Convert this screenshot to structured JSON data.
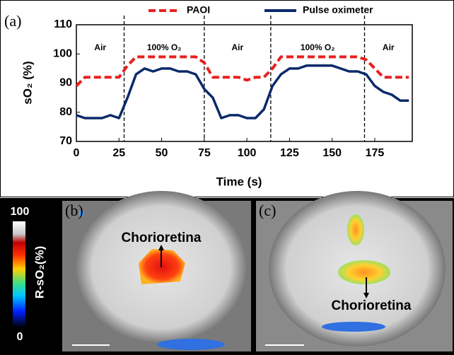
{
  "chart_data": {
    "type": "line",
    "panel_label": "(a)",
    "x_label": "Time (s)",
    "y_label": "sO₂ (%)",
    "xlim": [
      0,
      197
    ],
    "ylim": [
      70,
      110
    ],
    "xticks": [
      0,
      25,
      50,
      75,
      100,
      125,
      150,
      175
    ],
    "yticks": [
      70,
      80,
      90,
      100,
      110
    ],
    "phase_boundaries": [
      28,
      75,
      114,
      169
    ],
    "phase_labels": [
      "Air",
      "100% O₂",
      "Air",
      "100% O₂",
      "Air"
    ],
    "x": [
      0,
      5,
      10,
      15,
      20,
      25,
      30,
      35,
      40,
      45,
      50,
      55,
      60,
      65,
      70,
      75,
      80,
      85,
      90,
      95,
      100,
      105,
      110,
      115,
      120,
      125,
      130,
      135,
      140,
      145,
      150,
      155,
      160,
      165,
      170,
      175,
      180,
      185,
      190,
      195
    ],
    "series": [
      {
        "name": "PAOI",
        "color": "#e8201e",
        "dashed": true,
        "values": [
          89,
          92,
          92,
          92,
          92,
          92,
          96,
          99,
          99,
          99,
          99,
          99,
          99,
          99,
          99,
          97,
          92,
          92,
          92,
          92,
          91,
          92,
          92,
          95,
          99,
          99,
          99,
          99,
          99,
          99,
          99,
          99,
          99,
          99,
          98,
          95,
          92,
          92,
          92,
          92
        ]
      },
      {
        "name": "Pulse oximeter",
        "color": "#0b2a6b",
        "dashed": false,
        "values": [
          79,
          78,
          78,
          78,
          79,
          78,
          85,
          93,
          95,
          94,
          95,
          95,
          94,
          94,
          93,
          88,
          85,
          78,
          79,
          79,
          78,
          78,
          81,
          89,
          93,
          95,
          95,
          96,
          96,
          96,
          96,
          95,
          94,
          94,
          93,
          89,
          87,
          86,
          84,
          84
        ]
      }
    ]
  },
  "figure": {
    "colorbar": {
      "label": "R-sO₂(%)",
      "max": 100,
      "min": 0
    },
    "panels": [
      {
        "label": "(b)",
        "annotation": "Chorioretina"
      },
      {
        "label": "(c)",
        "annotation": "Chorioretina"
      }
    ]
  }
}
